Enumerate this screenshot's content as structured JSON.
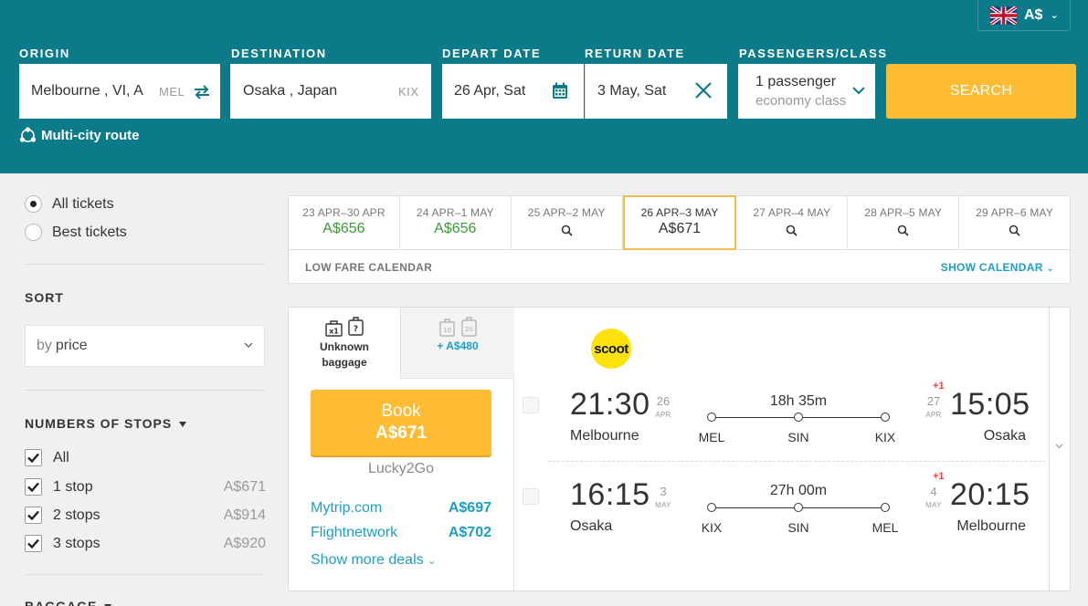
{
  "header": {
    "currency": "A$",
    "origin": {
      "label": "ORIGIN",
      "value": "Melbourne , VI, A",
      "code": "MEL"
    },
    "destination": {
      "label": "DESTINATION",
      "value": "Osaka , Japan",
      "code": "KIX"
    },
    "depart": {
      "label": "DEPART DATE",
      "value": "26 Apr, Sat"
    },
    "return": {
      "label": "RETURN DATE",
      "value": "3 May, Sat"
    },
    "passengers": {
      "label": "PASSENGERS/CLASS",
      "count": "1 passenger",
      "class": "economy class"
    },
    "search_label": "SEARCH",
    "multi_city_label": "Multi-city route"
  },
  "sidebar": {
    "ticket_options": [
      "All tickets",
      "Best tickets"
    ],
    "sort_heading": "SORT",
    "sort_prefix": "by",
    "sort_value": "price",
    "stops_heading": "NUMBERS OF STOPS",
    "stops": [
      {
        "label": "All",
        "price": ""
      },
      {
        "label": "1 stop",
        "price": "A$671"
      },
      {
        "label": "2 stops",
        "price": "A$914"
      },
      {
        "label": "3 stops",
        "price": "A$920"
      }
    ],
    "baggage_heading": "BAGGAGE"
  },
  "date_strip": {
    "cells": [
      {
        "range": "23 APR–30 APR",
        "price": "A$656"
      },
      {
        "range": "24 APR–1 MAY",
        "price": "A$656"
      },
      {
        "range": "25 APR–2 MAY",
        "price": ""
      },
      {
        "range": "26 APR–3 MAY",
        "price": "A$671"
      },
      {
        "range": "27 APR–4 MAY",
        "price": ""
      },
      {
        "range": "28 APR–5 MAY",
        "price": ""
      },
      {
        "range": "29 APR–6 MAY",
        "price": ""
      }
    ],
    "low_fare_label": "LOW FARE CALENDAR",
    "show_calendar_label": "SHOW CALENDAR"
  },
  "ticket": {
    "baggage_tab_1": {
      "line1": "Unknown",
      "line2": "baggage"
    },
    "baggage_tab_2": {
      "extra": "+ A$480",
      "kg1": "10",
      "kg2": "20"
    },
    "book_label": "Book",
    "book_price": "A$671",
    "agency": "Lucky2Go",
    "deals": [
      {
        "name": "Mytrip.com",
        "price": "A$697"
      },
      {
        "name": "Flightnetwork",
        "price": "A$702"
      }
    ],
    "show_more_label": "Show more deals",
    "airline_logo_text": "scoot",
    "segments": [
      {
        "dep_time": "21:30",
        "dep_day": "26",
        "dep_mon": "APR",
        "dep_city": "Melbourne",
        "duration": "18h 35m",
        "airports": [
          "MEL",
          "SIN",
          "KIX"
        ],
        "arr_plus": "+1",
        "arr_day": "27",
        "arr_mon": "APR",
        "arr_time": "15:05",
        "arr_city": "Osaka"
      },
      {
        "dep_time": "16:15",
        "dep_day": "3",
        "dep_mon": "MAY",
        "dep_city": "Osaka",
        "duration": "27h 00m",
        "airports": [
          "KIX",
          "SIN",
          "MEL"
        ],
        "arr_plus": "+1",
        "arr_day": "4",
        "arr_mon": "MAY",
        "arr_time": "20:15",
        "arr_city": "Melbourne"
      }
    ]
  },
  "colors": {
    "header_bg": "#0b7b8a",
    "accent_yellow": "#fdbc33",
    "link_blue": "#1d9fc3",
    "price_green": "#3a9a33",
    "plus_red": "#e0473b"
  }
}
